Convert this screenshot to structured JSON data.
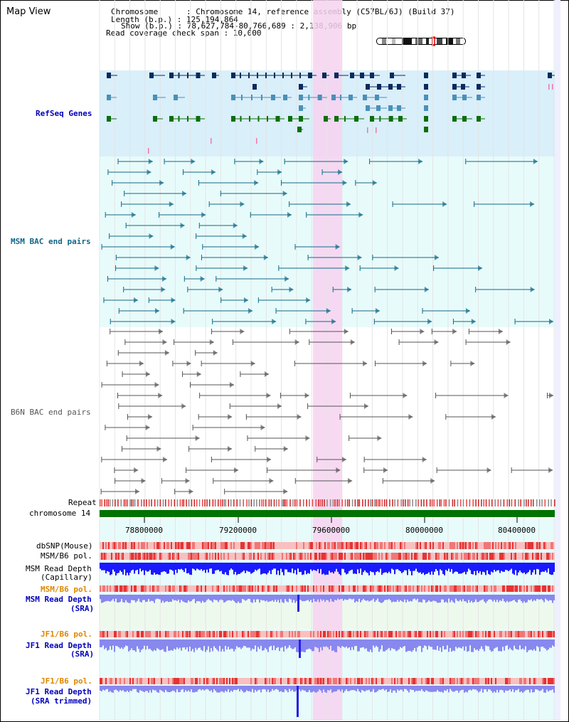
{
  "app_title": "Map View",
  "info": {
    "chromosome_line": "Chromosome      : Chromosome 14, reference assembly (C57BL/6J) (Build 37)",
    "length_line": "Length (b.p.) : 125,194,864",
    "show_line": "Show (b.p.) : 78,627,784-80,766,689 : 2,138,906 bp",
    "coverage_line": "Read coverage check span : 10,000"
  },
  "tracks": {
    "refseq_genes": "RefSeq Genes",
    "msm_bac": "MSM BAC end pairs",
    "b6n_bac": "B6N BAC end pairs",
    "repeat": "Repeat",
    "chromosome": "chromosome 14",
    "dbsnp": "dbSNP(Mouse)",
    "msm_b6_pol_1": "MSM/B6 pol.",
    "msm_read_depth_cap_1": "MSM Read Depth",
    "msm_read_depth_cap_2": "(Capillary)",
    "msm_b6_pol_2": "MSM/B6 pol.",
    "msm_read_depth_sra_1": "MSM Read Depth",
    "msm_read_depth_sra_2": "(SRA)",
    "jf1_b6_pol_1": "JF1/B6 pol.",
    "jf1_read_depth_sra_1": "JF1 Read Depth",
    "jf1_read_depth_sra_2": "(SRA)",
    "jf1_b6_pol_2": "JF1/B6 pol.",
    "jf1_read_depth_trim_1": "JF1 Read Depth",
    "jf1_read_depth_trim_2": "(SRA trimmed)"
  },
  "axis": {
    "ticks": [
      "78800000",
      "79200000",
      "79600000",
      "80000000",
      "80400000"
    ]
  },
  "colors": {
    "refseq_bg": "#d9effa",
    "bac_bg": "#e8fbfb",
    "highlight": "#f7d2f0",
    "gene_dark": "#0a2a5e",
    "gene_mid": "#4a90b8",
    "gene_green": "#0d6e0d",
    "chromosome_bar": "#007300",
    "msm_bac_line": "#0f6a86",
    "b6n_bac_line": "#555555",
    "depth_blue": "#1a1aff",
    "depth_light": "#8888ee",
    "pol_red": "#ee5555",
    "label_blue": "#0000bb",
    "label_orange": "#dd8800",
    "label_teal": "#116688"
  }
}
